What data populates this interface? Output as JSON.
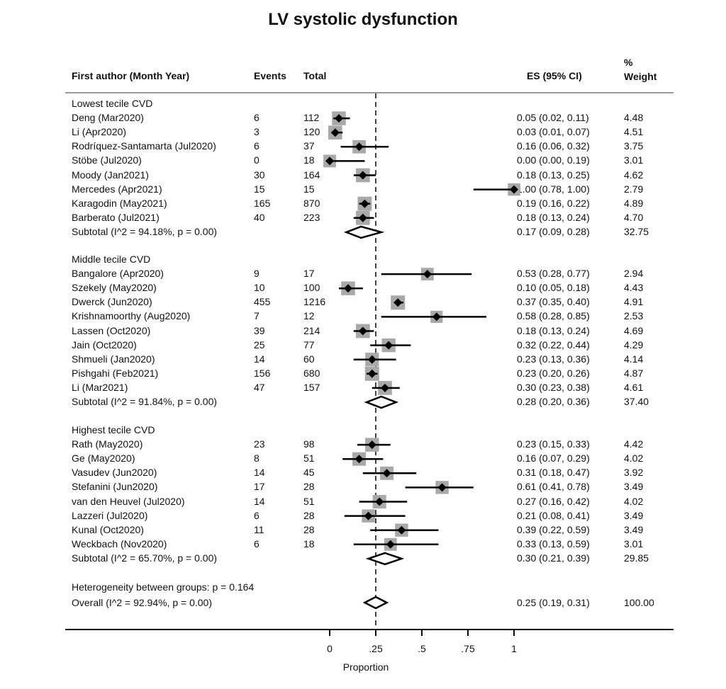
{
  "chart_data": {
    "type": "forest",
    "title": "LV systolic dysfunction",
    "xlabel": "Proportion",
    "xlim": [
      0,
      1
    ],
    "xticks": [
      0,
      0.25,
      0.5,
      0.75,
      1
    ],
    "xtick_labels": [
      "0",
      ".25",
      ".5",
      ".75",
      "1"
    ],
    "reference_line": 0.25,
    "columns": {
      "study": "First author (Month Year)",
      "events": "Events",
      "total": "Total",
      "es": "ES (95% CI)",
      "weight_line1": "%",
      "weight_line2": "Weight"
    },
    "groups": [
      {
        "label": "Lowest tecile CVD",
        "studies": [
          {
            "study": "Deng (Mar2020)",
            "events": "6",
            "total": "112",
            "es": 0.05,
            "lo": 0.02,
            "hi": 0.11,
            "es_text": "0.05 (0.02, 0.11)",
            "weight": "4.48"
          },
          {
            "study": "Li (Apr2020)",
            "events": "3",
            "total": "120",
            "es": 0.03,
            "lo": 0.01,
            "hi": 0.07,
            "es_text": "0.03 (0.01, 0.07)",
            "weight": "4.51"
          },
          {
            "study": "Rodríquez-Santamarta (Jul2020)",
            "events": "6",
            "total": "37",
            "es": 0.16,
            "lo": 0.06,
            "hi": 0.32,
            "es_text": "0.16 (0.06, 0.32)",
            "weight": "3.75"
          },
          {
            "study": "Stöbe (Jul2020)",
            "events": "0",
            "total": "18",
            "es": 0.0,
            "lo": 0.0,
            "hi": 0.19,
            "es_text": "0.00 (0.00, 0.19)",
            "weight": "3.01"
          },
          {
            "study": "Moody (Jan2021)",
            "events": "30",
            "total": "164",
            "es": 0.18,
            "lo": 0.13,
            "hi": 0.25,
            "es_text": "0.18 (0.13, 0.25)",
            "weight": "4.62"
          },
          {
            "study": "Mercedes (Apr2021)",
            "events": "15",
            "total": "15",
            "es": 1.0,
            "lo": 0.78,
            "hi": 1.0,
            "es_text": "1.00 (0.78, 1.00)",
            "weight": "2.79"
          },
          {
            "study": "Karagodin (May2021)",
            "events": "165",
            "total": "870",
            "es": 0.19,
            "lo": 0.16,
            "hi": 0.22,
            "es_text": "0.19 (0.16, 0.22)",
            "weight": "4.89"
          },
          {
            "study": "Barberato (Jul2021)",
            "events": "40",
            "total": "223",
            "es": 0.18,
            "lo": 0.13,
            "hi": 0.24,
            "es_text": "0.18 (0.13, 0.24)",
            "weight": "4.70"
          }
        ],
        "subtotal": {
          "label": "Subtotal (I^2 = 94.18%, p = 0.00)",
          "es": 0.17,
          "lo": 0.09,
          "hi": 0.28,
          "es_text": "0.17 (0.09, 0.28)",
          "weight": "32.75"
        }
      },
      {
        "label": "Middle tecile CVD",
        "studies": [
          {
            "study": "Bangalore (Apr2020)",
            "events": "9",
            "total": "17",
            "es": 0.53,
            "lo": 0.28,
            "hi": 0.77,
            "es_text": "0.53 (0.28, 0.77)",
            "weight": "2.94"
          },
          {
            "study": "Szekely (May2020)",
            "events": "10",
            "total": "100",
            "es": 0.1,
            "lo": 0.05,
            "hi": 0.18,
            "es_text": "0.10 (0.05, 0.18)",
            "weight": "4.43"
          },
          {
            "study": "Dwerck (Jun2020)",
            "events": "455",
            "total": "1216",
            "es": 0.37,
            "lo": 0.35,
            "hi": 0.4,
            "es_text": "0.37 (0.35, 0.40)",
            "weight": "4.91"
          },
          {
            "study": "Krishnamoorthy (Aug2020)",
            "events": "7",
            "total": "12",
            "es": 0.58,
            "lo": 0.28,
            "hi": 0.85,
            "es_text": "0.58 (0.28, 0.85)",
            "weight": "2.53"
          },
          {
            "study": "Lassen (Oct2020)",
            "events": "39",
            "total": "214",
            "es": 0.18,
            "lo": 0.13,
            "hi": 0.24,
            "es_text": "0.18 (0.13, 0.24)",
            "weight": "4.69"
          },
          {
            "study": "Jain (Oct2020)",
            "events": "25",
            "total": "77",
            "es": 0.32,
            "lo": 0.22,
            "hi": 0.44,
            "es_text": "0.32 (0.22, 0.44)",
            "weight": "4.29"
          },
          {
            "study": "Shmueli (Jan2020)",
            "events": "14",
            "total": "60",
            "es": 0.23,
            "lo": 0.13,
            "hi": 0.36,
            "es_text": "0.23 (0.13, 0.36)",
            "weight": "4.14"
          },
          {
            "study": "Pishgahi (Feb2021)",
            "events": "156",
            "total": "680",
            "es": 0.23,
            "lo": 0.2,
            "hi": 0.26,
            "es_text": "0.23 (0.20, 0.26)",
            "weight": "4.87"
          },
          {
            "study": "Li (Mar2021)",
            "events": "47",
            "total": "157",
            "es": 0.3,
            "lo": 0.23,
            "hi": 0.38,
            "es_text": "0.30 (0.23, 0.38)",
            "weight": "4.61"
          }
        ],
        "subtotal": {
          "label": "Subtotal (I^2 = 91.84%, p = 0.00)",
          "es": 0.28,
          "lo": 0.2,
          "hi": 0.36,
          "es_text": "0.28 (0.20, 0.36)",
          "weight": "37.40"
        }
      },
      {
        "label": "Highest tecile CVD",
        "studies": [
          {
            "study": "Rath (May2020)",
            "events": "23",
            "total": "98",
            "es": 0.23,
            "lo": 0.15,
            "hi": 0.33,
            "es_text": "0.23 (0.15, 0.33)",
            "weight": "4.42"
          },
          {
            "study": "Ge (May2020)",
            "events": "8",
            "total": "51",
            "es": 0.16,
            "lo": 0.07,
            "hi": 0.29,
            "es_text": "0.16 (0.07, 0.29)",
            "weight": "4.02"
          },
          {
            "study": "Vasudev (Jun2020)",
            "events": "14",
            "total": "45",
            "es": 0.31,
            "lo": 0.18,
            "hi": 0.47,
            "es_text": "0.31 (0.18, 0.47)",
            "weight": "3.92"
          },
          {
            "study": "Stefanini (Jun2020)",
            "events": "17",
            "total": "28",
            "es": 0.61,
            "lo": 0.41,
            "hi": 0.78,
            "es_text": "0.61 (0.41, 0.78)",
            "weight": "3.49"
          },
          {
            "study": "van den Heuvel (Jul2020)",
            "events": "14",
            "total": "51",
            "es": 0.27,
            "lo": 0.16,
            "hi": 0.42,
            "es_text": "0.27 (0.16, 0.42)",
            "weight": "4.02"
          },
          {
            "study": "Lazzeri (Jul2020)",
            "events": "6",
            "total": "28",
            "es": 0.21,
            "lo": 0.08,
            "hi": 0.41,
            "es_text": "0.21 (0.08, 0.41)",
            "weight": "3.49"
          },
          {
            "study": "Kunal (Oct2020)",
            "events": "11",
            "total": "28",
            "es": 0.39,
            "lo": 0.22,
            "hi": 0.59,
            "es_text": "0.39 (0.22, 0.59)",
            "weight": "3.49"
          },
          {
            "study": "Weckbach (Nov2020)",
            "events": "6",
            "total": "18",
            "es": 0.33,
            "lo": 0.13,
            "hi": 0.59,
            "es_text": "0.33 (0.13, 0.59)",
            "weight": "3.01"
          }
        ],
        "subtotal": {
          "label": "Subtotal (I^2 = 65.70%, p = 0.00)",
          "es": 0.3,
          "lo": 0.21,
          "hi": 0.39,
          "es_text": "0.30 (0.21, 0.39)",
          "weight": "29.85"
        }
      }
    ],
    "heterogeneity": "Heterogeneity between groups: p = 0.164",
    "overall": {
      "label": "Overall (I^2 = 92.94%, p = 0.00)",
      "es": 0.25,
      "lo": 0.19,
      "hi": 0.31,
      "es_text": "0.25 (0.19, 0.31)",
      "weight": "100.00"
    },
    "colors": {
      "box": "#a9a9a9",
      "marker": "#000000",
      "ref_line": "#444444",
      "rule": "#9a9a9a"
    }
  }
}
